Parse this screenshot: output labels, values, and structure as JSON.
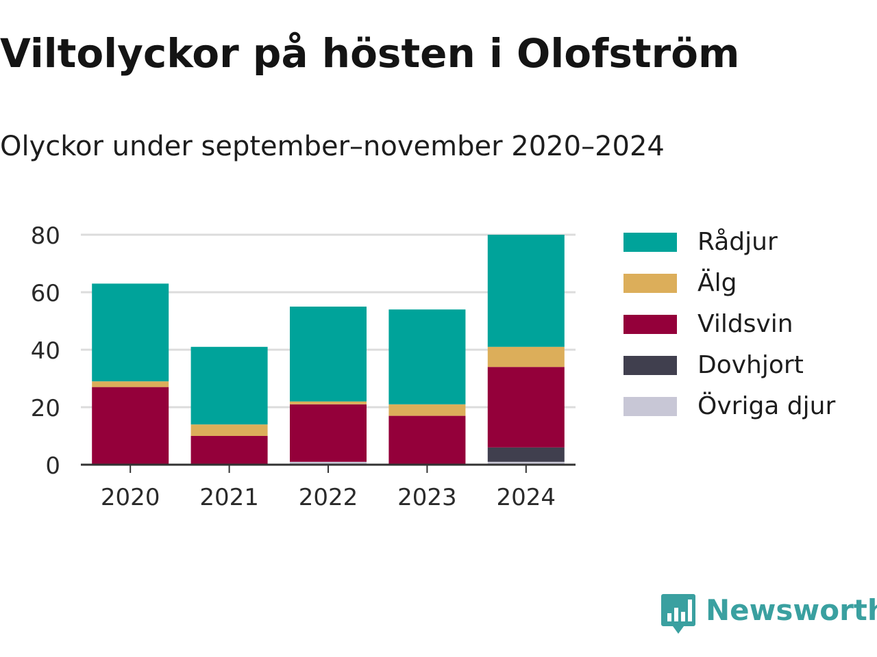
{
  "title": "Viltolyckor på hösten i Olofström",
  "subtitle": "Olyckor under september–november 2020–2024",
  "brand": {
    "name": "Newsworthy",
    "icon": "newsworthy-logo-icon",
    "color": "#3aa0a0"
  },
  "chart_data": {
    "type": "bar",
    "stacked": true,
    "categories": [
      "2020",
      "2021",
      "2022",
      "2023",
      "2024"
    ],
    "series": [
      {
        "name": "Övriga djur",
        "color": "#c8c7d6",
        "values": [
          0,
          0,
          1,
          0,
          1
        ]
      },
      {
        "name": "Dovhjort",
        "color": "#403f4e",
        "values": [
          0,
          0,
          0,
          0,
          5
        ]
      },
      {
        "name": "Vildsvin",
        "color": "#94003a",
        "values": [
          27,
          10,
          20,
          17,
          28
        ]
      },
      {
        "name": "Älg",
        "color": "#dcae5a",
        "values": [
          2,
          4,
          1,
          4,
          7
        ]
      },
      {
        "name": "Rådjur",
        "color": "#00a39a",
        "values": [
          34,
          27,
          33,
          33,
          39
        ]
      }
    ],
    "legend_order": [
      "Rådjur",
      "Älg",
      "Vildsvin",
      "Dovhjort",
      "Övriga djur"
    ],
    "ylim": [
      0,
      80
    ],
    "yticks": [
      0,
      20,
      40,
      60,
      80
    ],
    "grid": true,
    "legend_position": "right",
    "xlabel": "",
    "ylabel": ""
  }
}
